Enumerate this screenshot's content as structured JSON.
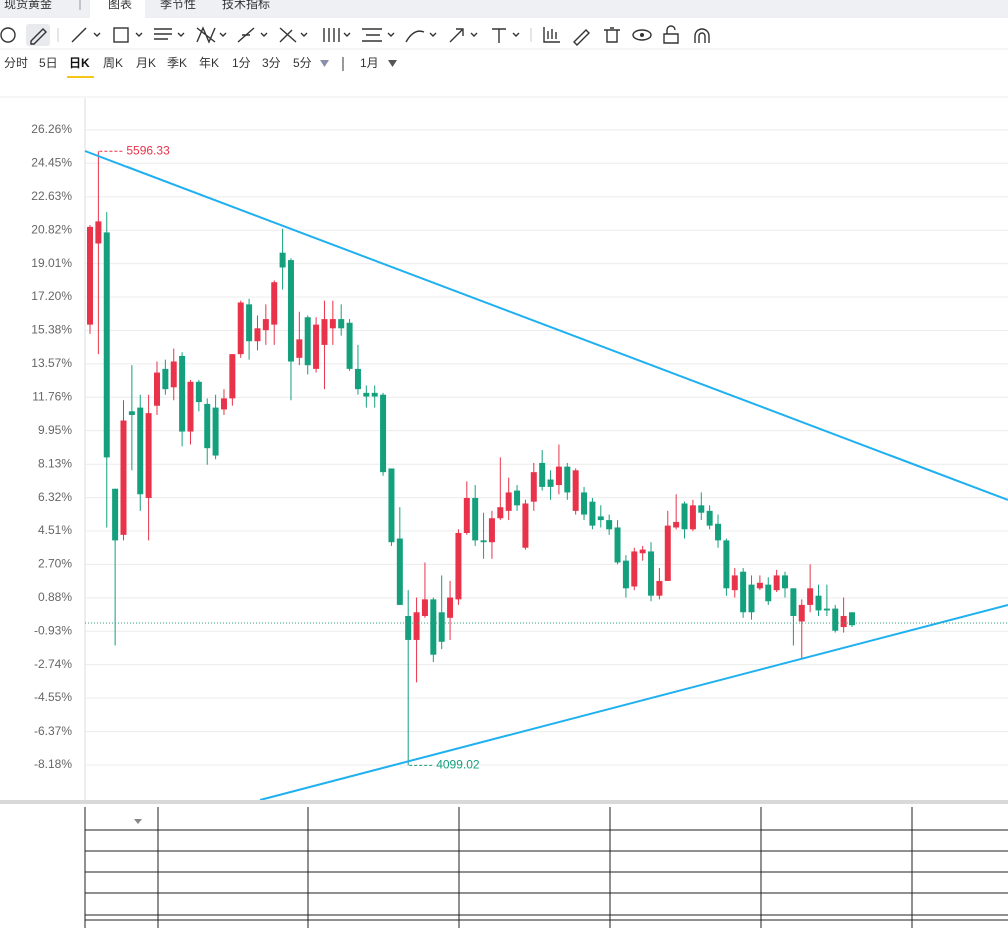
{
  "tabs": [
    "现货黄金",
    "图表",
    "季节性",
    "技术指标"
  ],
  "periods": [
    "分时",
    "5日",
    "日K",
    "周K",
    "月K",
    "季K",
    "年K",
    "1分",
    "3分",
    "5分"
  ],
  "range": "1月",
  "chart_data": {
    "type": "candlestick",
    "up_color": "#e8334a",
    "down_color": "#14a07d",
    "ylim": [
      -10.08,
      27.99
    ],
    "yticks": [
      {
        "value": 26.26,
        "label": "26.26%"
      },
      {
        "value": 24.45,
        "label": "24.45%"
      },
      {
        "value": 22.63,
        "label": "22.63%"
      },
      {
        "value": 20.82,
        "label": "20.82%"
      },
      {
        "value": 19.01,
        "label": "19.01%"
      },
      {
        "value": 17.2,
        "label": "17.20%"
      },
      {
        "value": 15.38,
        "label": "15.38%"
      },
      {
        "value": 13.57,
        "label": "13.57%"
      },
      {
        "value": 11.76,
        "label": "11.76%"
      },
      {
        "value": 9.95,
        "label": "9.95%"
      },
      {
        "value": 8.13,
        "label": "8.13%"
      },
      {
        "value": 6.32,
        "label": "6.32%"
      },
      {
        "value": 4.51,
        "label": "4.51%"
      },
      {
        "value": 2.7,
        "label": "2.70%"
      },
      {
        "value": 0.88,
        "label": "0.88%"
      },
      {
        "value": -0.93,
        "label": "-0.93%"
      },
      {
        "value": -2.74,
        "label": "-2.74%"
      },
      {
        "value": -4.55,
        "label": "-4.55%"
      },
      {
        "value": -6.37,
        "label": "-6.37%"
      },
      {
        "value": -8.18,
        "label": "-8.18%"
      }
    ],
    "grid": true,
    "high_label": "5596.33",
    "low_label": "4099.02",
    "open": [
      15.7,
      20.1,
      20.7,
      6.8,
      4.3,
      11.0,
      11.2,
      6.3,
      11.3,
      13.3,
      12.3,
      14.0,
      9.9,
      12.6,
      11.4,
      11.2,
      11.1,
      11.7,
      14.1,
      16.8,
      14.8,
      15.4,
      15.7,
      19.6,
      19.2,
      13.9,
      16.1,
      13.3,
      14.6,
      15.5,
      16.0,
      15.8,
      13.3,
      12.0,
      12.0,
      11.9,
      7.9,
      4.1,
      -0.1,
      -1.4,
      -0.1,
      0.8,
      0.1,
      -0.2,
      0.8,
      4.4,
      6.3,
      4.0,
      3.9,
      5.2,
      5.6,
      6.7,
      3.6,
      6.1,
      8.2,
      7.3,
      7.0,
      8.0,
      5.6,
      6.6,
      6.1,
      5.3,
      5.1,
      4.7,
      2.9,
      1.5,
      3.3,
      3.4,
      1.0,
      1.8,
      4.7,
      6.0,
      4.6,
      5.9,
      5.6,
      4.9,
      4.0,
      1.3,
      2.3,
      1.6,
      1.4,
      1.6,
      1.3,
      2.1,
      1.4,
      -0.4,
      0.5,
      1.0,
      0.3,
      0.3,
      -0.7,
      0.1
    ],
    "high": [
      21.1,
      25.1,
      21.8,
      6.8,
      11.6,
      13.5,
      11.9,
      11.9,
      13.7,
      13.8,
      14.4,
      14.2,
      12.7,
      12.7,
      11.7,
      11.9,
      12.2,
      14.1,
      17.0,
      17.1,
      16.2,
      16.8,
      18.1,
      20.9,
      19.3,
      16.4,
      16.2,
      16.1,
      17.0,
      17.0,
      16.8,
      16.0,
      14.6,
      12.4,
      12.4,
      12.0,
      7.9,
      5.8,
      1.3,
      0.9,
      2.8,
      0.9,
      2.1,
      1.8,
      4.6,
      7.2,
      7.0,
      5.5,
      5.6,
      8.5,
      7.4,
      7.0,
      6.2,
      8.2,
      8.9,
      7.8,
      9.2,
      8.2,
      7.9,
      6.9,
      6.3,
      5.9,
      5.4,
      5.1,
      3.2,
      3.6,
      3.7,
      3.9,
      2.5,
      5.6,
      6.5,
      6.1,
      6.2,
      6.6,
      5.9,
      5.4,
      4.1,
      2.5,
      2.5,
      2.1,
      2.1,
      2.0,
      2.4,
      2.3,
      1.4,
      0.8,
      2.7,
      1.6,
      1.6,
      0.5,
      0.9,
      0.1
    ],
    "low": [
      15.2,
      14.1,
      4.7,
      -1.7,
      4.0,
      7.8,
      5.6,
      4.0,
      10.8,
      11.9,
      11.6,
      9.1,
      9.2,
      11.0,
      8.1,
      8.4,
      10.8,
      11.3,
      13.9,
      13.8,
      14.3,
      14.6,
      14.6,
      17.6,
      11.6,
      13.5,
      13.0,
      13.1,
      12.2,
      14.6,
      15.1,
      13.2,
      11.9,
      11.2,
      11.2,
      7.5,
      3.7,
      0.5,
      -8.2,
      -3.7,
      -0.2,
      -2.6,
      -1.9,
      -1.4,
      0.5,
      4.3,
      3.7,
      3.0,
      3.0,
      5.1,
      5.1,
      5.6,
      3.5,
      5.6,
      6.7,
      6.2,
      6.5,
      6.2,
      5.4,
      5.1,
      4.6,
      4.7,
      4.3,
      2.7,
      0.9,
      1.3,
      2.9,
      0.7,
      0.8,
      1.8,
      4.6,
      4.1,
      4.5,
      5.1,
      4.6,
      3.6,
      1.0,
      0.9,
      -0.2,
      -0.3,
      1.3,
      0.5,
      1.2,
      0.9,
      -1.7,
      -2.4,
      0.1,
      -0.1,
      -0.1,
      -1.0,
      -1.0,
      -0.7
    ],
    "close": [
      21.0,
      21.3,
      8.5,
      4.0,
      10.5,
      10.8,
      6.5,
      10.9,
      13.1,
      12.2,
      13.7,
      9.9,
      12.6,
      11.5,
      9.0,
      8.6,
      11.7,
      14.1,
      16.9,
      14.8,
      15.5,
      16.0,
      18.0,
      18.8,
      13.7,
      14.9,
      13.5,
      15.7,
      16.0,
      16.0,
      15.5,
      13.3,
      12.2,
      11.8,
      11.8,
      7.7,
      3.9,
      0.5,
      -1.4,
      0.1,
      0.8,
      -2.2,
      -1.5,
      0.9,
      4.4,
      6.3,
      4.0,
      3.9,
      5.2,
      5.8,
      6.6,
      5.9,
      6.0,
      7.7,
      6.9,
      6.9,
      8.0,
      6.6,
      7.8,
      5.4,
      4.8,
      5.1,
      4.6,
      2.8,
      1.4,
      3.4,
      3.5,
      1.0,
      1.8,
      4.8,
      5.0,
      4.6,
      5.9,
      5.5,
      4.8,
      4.0,
      1.4,
      2.1,
      0.1,
      0.1,
      1.7,
      0.7,
      2.1,
      1.4,
      -0.1,
      0.5,
      1.4,
      0.2,
      0.2,
      -0.9,
      -0.1,
      -0.6
    ]
  }
}
